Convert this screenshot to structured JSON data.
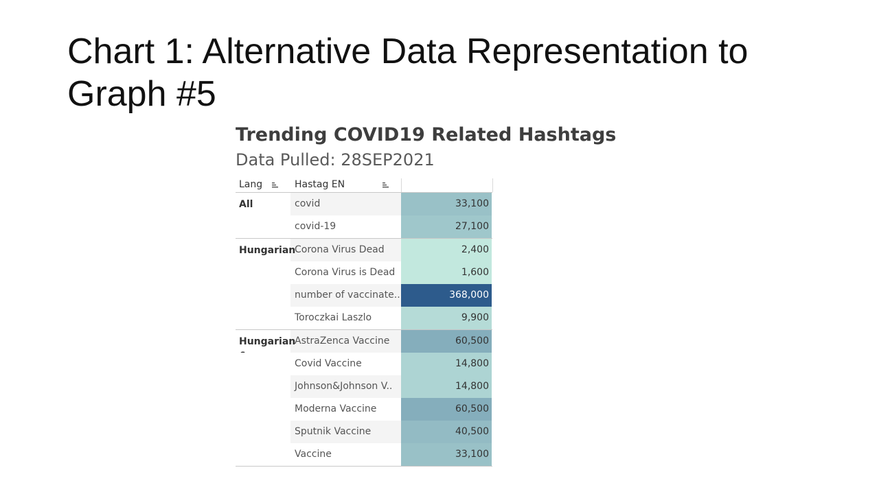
{
  "slide_title": "Chart 1: Alternative Data Representation to Graph #5",
  "chart_data": {
    "type": "table",
    "title": "Trending COVID19 Related Hashtags",
    "subtitle": "Data Pulled: 28SEP2021",
    "columns": [
      "Lang",
      "Hastag EN",
      ""
    ],
    "color_scale": {
      "low": "#c2e8de",
      "high": "#2d5b8c"
    },
    "rows": [
      {
        "lang": "All",
        "hashtag": "covid",
        "value": 33100,
        "label": "33,100"
      },
      {
        "lang": "",
        "hashtag": "covid-19",
        "value": 27100,
        "label": "27,100"
      },
      {
        "lang": "Hungarian",
        "hashtag": "Corona Virus Dead",
        "value": 2400,
        "label": "2,400"
      },
      {
        "lang": "",
        "hashtag": "Corona Virus is Dead",
        "value": 1600,
        "label": "1,600"
      },
      {
        "lang": "",
        "hashtag": "number of vaccinate..",
        "value": 368000,
        "label": "368,000"
      },
      {
        "lang": "",
        "hashtag": "Toroczkai Laszlo",
        "value": 9900,
        "label": "9,900"
      },
      {
        "lang": "Hungarian & Serbian",
        "hashtag": "AstraZenca Vaccine",
        "value": 60500,
        "label": "60,500"
      },
      {
        "lang": "",
        "hashtag": "Covid Vaccine",
        "value": 14800,
        "label": "14,800"
      },
      {
        "lang": "",
        "hashtag": "Johnson&Johnson V..",
        "value": 14800,
        "label": "14,800"
      },
      {
        "lang": "",
        "hashtag": "Moderna Vaccine",
        "value": 60500,
        "label": "60,500"
      },
      {
        "lang": "",
        "hashtag": "Sputnik Vaccine",
        "value": 40500,
        "label": "40,500"
      },
      {
        "lang": "",
        "hashtag": "Vaccine",
        "value": 33100,
        "label": "33,100"
      }
    ]
  }
}
